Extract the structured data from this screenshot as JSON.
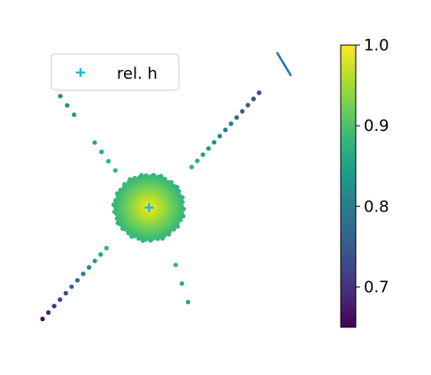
{
  "chart_data": {
    "type": "scatter",
    "title": "",
    "xlabel": "",
    "ylabel": "",
    "axes_visible": false,
    "marker_series": {
      "name": "rel. h",
      "marker": "plus",
      "color": "#17becf",
      "x": [
        0.0
      ],
      "y": [
        0.0
      ]
    },
    "legend": {
      "entries": [
        "rel. h"
      ],
      "placement": "top-left"
    },
    "colormap": "viridis",
    "colorbar": {
      "range": [
        0.65,
        1.0
      ],
      "ticks": [
        0.7,
        0.8,
        0.9,
        1.0
      ],
      "tick_labels": [
        "0.7",
        "0.8",
        "0.9",
        "1.0"
      ],
      "placement": "right"
    },
    "color_value_model": {
      "disk_center": 1.0,
      "disk_edge": 0.88,
      "arm_min": 0.66,
      "arm_lower_left_end": 0.66,
      "arm_upper_right_end": 0.72,
      "arm_upper_left_end": 0.82,
      "arm_lower_right_end": 0.86
    },
    "line_segment": {
      "color": "#1f77b4",
      "description": "partial line at top right",
      "x": [
        3.6,
        4.0
      ],
      "y": [
        4.6,
        3.9
      ]
    },
    "point_groups": [
      {
        "name": "disk",
        "center": [
          0,
          0
        ],
        "radius": 1.0
      },
      {
        "name": "arm-lower-left",
        "from": [
          -1.2,
          -1.2
        ],
        "to": [
          -3.0,
          -3.3
        ]
      },
      {
        "name": "arm-upper-right",
        "from": [
          1.2,
          1.2
        ],
        "to": [
          3.1,
          3.4
        ]
      },
      {
        "name": "arm-upper-left",
        "from": [
          -0.95,
          1.1
        ],
        "to": [
          -2.5,
          3.3
        ]
      },
      {
        "name": "arm-lower-right",
        "from": [
          0.75,
          -1.7
        ],
        "to": [
          1.1,
          -2.8
        ]
      }
    ],
    "xlim": [
      -3.7,
      4.9
    ],
    "ylim": [
      -4.2,
      5.1
    ]
  }
}
